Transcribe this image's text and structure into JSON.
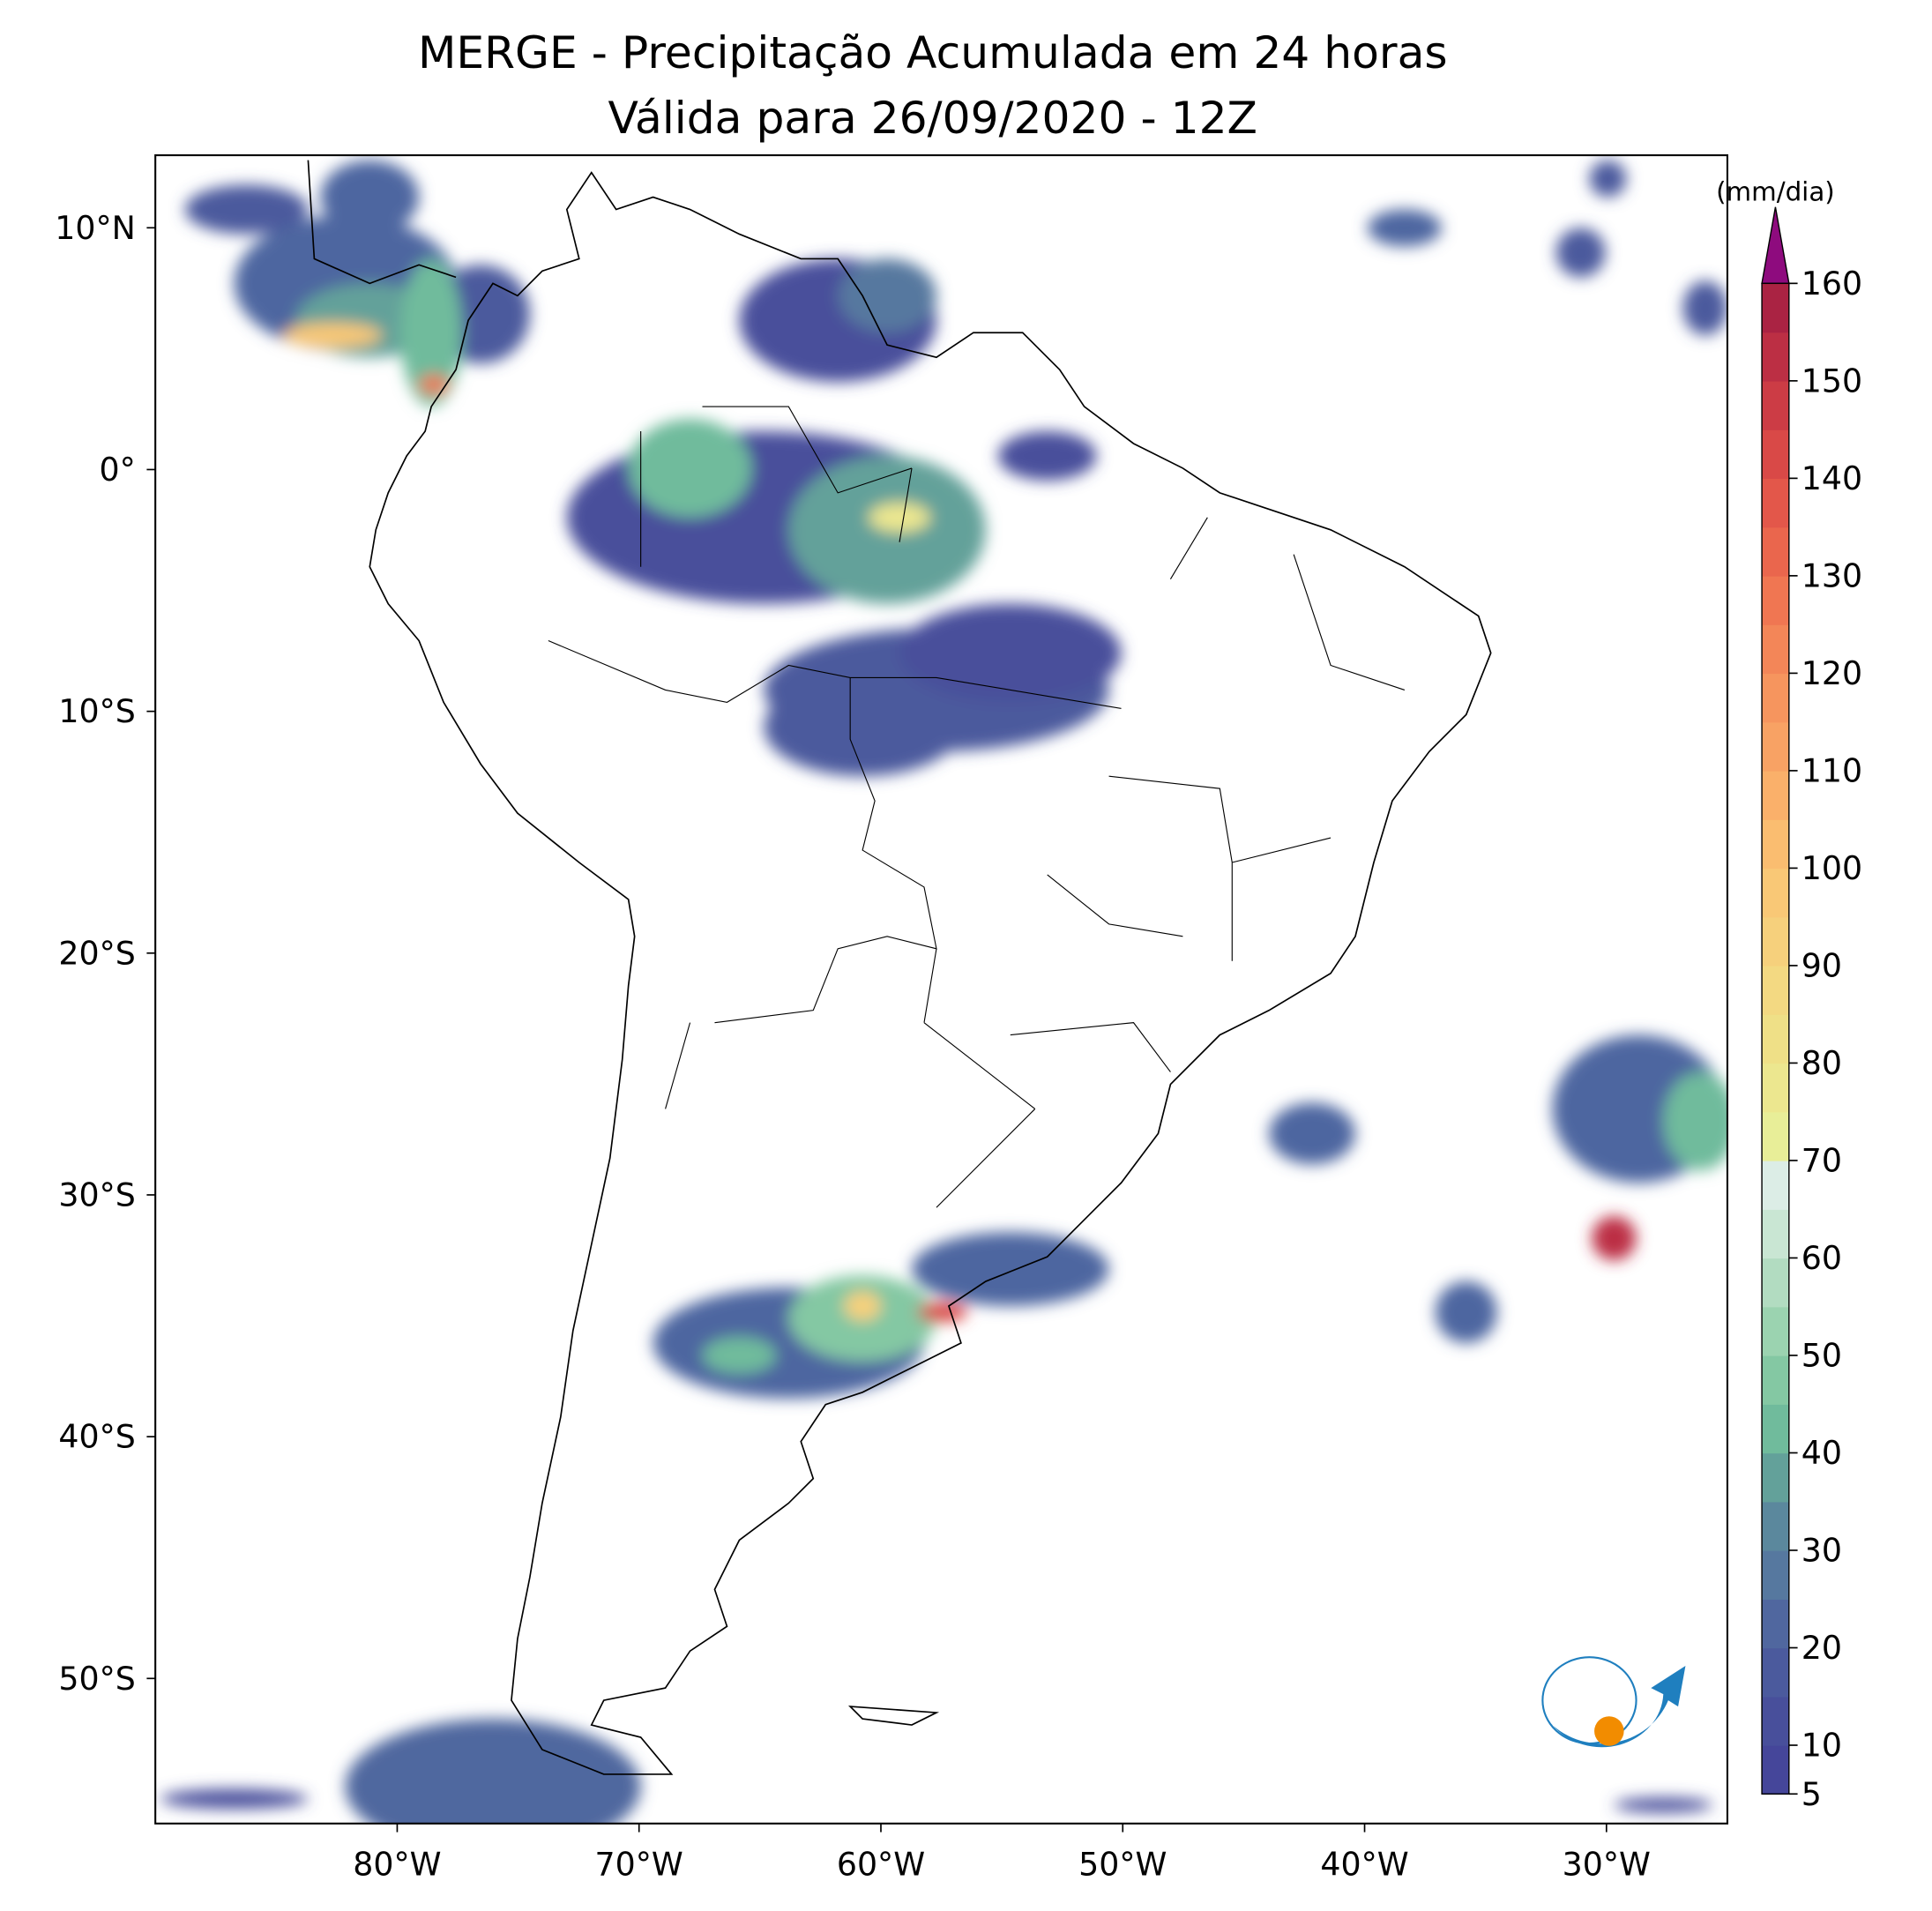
{
  "map": {
    "title": "MERGE - Precipitação Acumulada em 24 horas",
    "subtitle": "Válida para 26/09/2020 - 12Z",
    "xlim": [
      -90,
      -25
    ],
    "ylim": [
      -56,
      13
    ],
    "xticks": [
      {
        "value": -80,
        "label": "80°W"
      },
      {
        "value": -70,
        "label": "70°W"
      },
      {
        "value": -60,
        "label": "60°W"
      },
      {
        "value": -50,
        "label": "50°W"
      },
      {
        "value": -40,
        "label": "40°W"
      },
      {
        "value": -30,
        "label": "30°W"
      }
    ],
    "yticks": [
      {
        "value": 10,
        "label": "10°N"
      },
      {
        "value": 0,
        "label": "0°"
      },
      {
        "value": -10,
        "label": "10°S"
      },
      {
        "value": -20,
        "label": "20°S"
      },
      {
        "value": -30,
        "label": "30°S"
      },
      {
        "value": -40,
        "label": "40°S"
      },
      {
        "value": -50,
        "label": "50°S"
      }
    ],
    "colorbar": {
      "label": "(mm/dia)",
      "lim": [
        5,
        160
      ],
      "ticks": [
        5,
        10,
        20,
        30,
        40,
        50,
        60,
        70,
        80,
        90,
        100,
        110,
        120,
        130,
        140,
        150,
        160
      ],
      "colors": [
        "#45469a",
        "#484f9b",
        "#4b5a9d",
        "#50679f",
        "#56789f",
        "#5b889d",
        "#63a19a",
        "#70bb9c",
        "#84c8a3",
        "#9bd3b0",
        "#b2dcc1",
        "#c9e6d3",
        "#dcede6",
        "#e8ee98",
        "#ece78f",
        "#efe087",
        "#f3d982",
        "#f6d07c",
        "#f9c876",
        "#fabd70",
        "#fab06a",
        "#f8a264",
        "#f6955e",
        "#f38658",
        "#f07652",
        "#ea664d",
        "#e3574a",
        "#d94947",
        "#cc3c45",
        "#bc2f44",
        "#aa2343"
      ],
      "extend_color": "#8e0b7e"
    },
    "logo_text": "INPE"
  }
}
